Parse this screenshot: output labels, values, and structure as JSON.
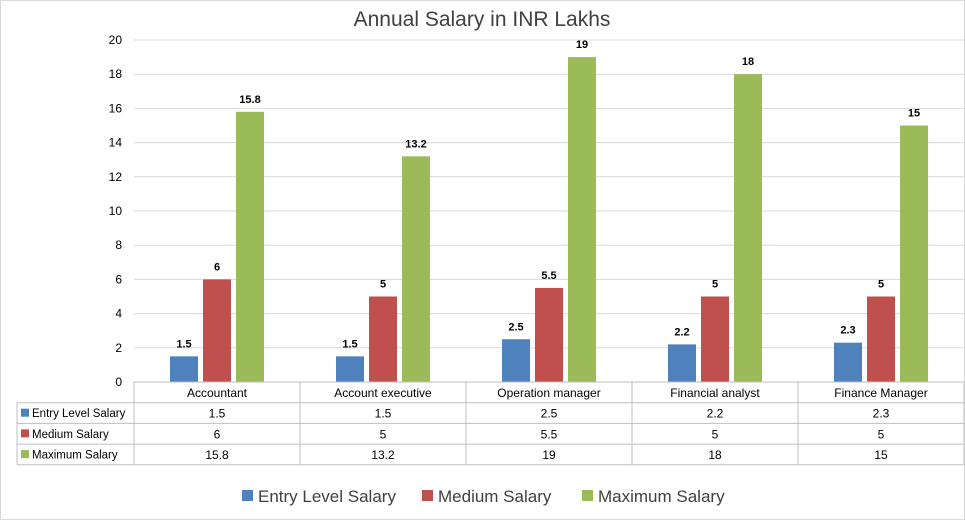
{
  "chart_data": {
    "type": "bar",
    "title": "Annual Salary in INR Lakhs",
    "categories": [
      "Accountant",
      "Account executive",
      "Operation manager",
      "Financial analyst",
      "Finance Manager"
    ],
    "series": [
      {
        "name": "Entry Level Salary",
        "color": "#4f81bd",
        "values": [
          1.5,
          1.5,
          2.5,
          2.2,
          2.3
        ],
        "labels": [
          "1.5",
          "1.5",
          "2.5",
          "2.2",
          "2.3"
        ]
      },
      {
        "name": "Medium Salary",
        "color": "#c0504d",
        "values": [
          6,
          5,
          5.5,
          5,
          5
        ],
        "labels": [
          "6",
          "5",
          "5.5",
          "5",
          "5"
        ]
      },
      {
        "name": "Maximum Salary",
        "color": "#9bbb59",
        "values": [
          15.8,
          13.2,
          19,
          18,
          15
        ],
        "labels": [
          "15.8",
          "13.2",
          "19",
          "18",
          "15"
        ]
      }
    ],
    "ylim": [
      0,
      20
    ],
    "yticks": [
      "0",
      "2",
      "4",
      "6",
      "8",
      "10",
      "12",
      "14",
      "16",
      "18",
      "20"
    ],
    "grid": true,
    "legend": "bottom",
    "data_table": true
  }
}
